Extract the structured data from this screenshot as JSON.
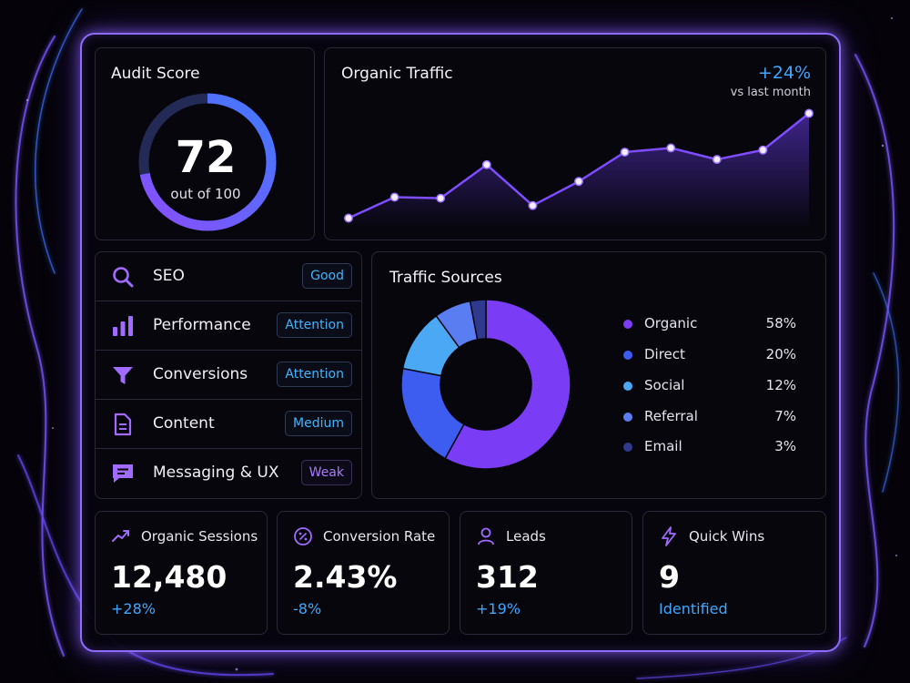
{
  "audit": {
    "title": "Audit Score",
    "score": "72",
    "subtitle": "out of 100",
    "score_fraction": 0.72
  },
  "organic_traffic": {
    "title": "Organic Traffic",
    "delta": "+24%",
    "delta_caption": "vs last month",
    "values": [
      10,
      30,
      29,
      61,
      22,
      45,
      73,
      77,
      66,
      75,
      110
    ],
    "y_range": [
      0,
      120
    ]
  },
  "categories": [
    {
      "label": "SEO",
      "status": "Good",
      "icon": "search-icon"
    },
    {
      "label": "Performance",
      "status": "Attention",
      "icon": "bar-chart-icon"
    },
    {
      "label": "Conversions",
      "status": "Attention",
      "icon": "funnel-icon"
    },
    {
      "label": "Content",
      "status": "Medium",
      "icon": "document-icon"
    },
    {
      "label": "Messaging & UX",
      "status": "Weak",
      "icon": "chat-icon"
    }
  ],
  "traffic_sources": {
    "title": "Traffic Sources",
    "items": [
      {
        "label": "Organic",
        "value": "58%",
        "pct": 58,
        "color": "#7a3cf5"
      },
      {
        "label": "Direct",
        "value": "20%",
        "pct": 20,
        "color": "#3d5cf0"
      },
      {
        "label": "Social",
        "value": "12%",
        "pct": 12,
        "color": "#4aa8f5"
      },
      {
        "label": "Referral",
        "value": "7%",
        "pct": 7,
        "color": "#5b7df2"
      },
      {
        "label": "Email",
        "value": "3%",
        "pct": 3,
        "color": "#2f3a8f"
      }
    ]
  },
  "kpis": [
    {
      "title": "Organic Sessions",
      "value": "12,480",
      "delta": "+28%",
      "icon": "trend-up-icon"
    },
    {
      "title": "Conversion Rate",
      "value": "2.43%",
      "delta": "-8%",
      "icon": "percent-icon"
    },
    {
      "title": "Leads",
      "value": "312",
      "delta": "+19%",
      "icon": "user-icon"
    },
    {
      "title": "Quick Wins",
      "value": "9",
      "delta": "Identified",
      "icon": "lightning-icon"
    }
  ]
}
